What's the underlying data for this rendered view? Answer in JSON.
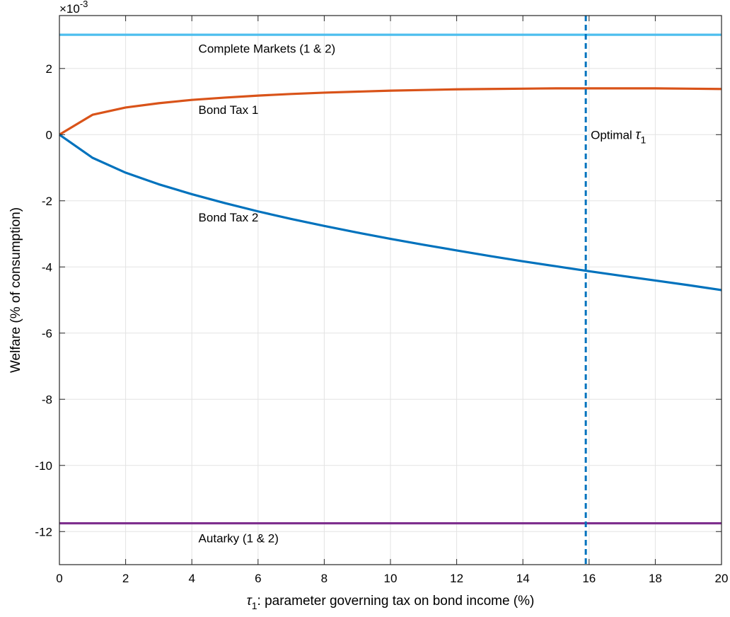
{
  "chart_data": {
    "type": "line",
    "xlabel_symbol": "τ",
    "xlabel_subscript": "1",
    "xlabel_rest": ": parameter governing tax on bond income (%)",
    "ylabel": "Welfare (% of consumption)",
    "y_exponent_prefix": "×10",
    "y_exponent_power": "-3",
    "xlim": [
      0,
      20
    ],
    "ylim": [
      -13,
      3.6
    ],
    "xticks": [
      0,
      2,
      4,
      6,
      8,
      10,
      12,
      14,
      16,
      18,
      20
    ],
    "yticks": [
      -12,
      -10,
      -8,
      -6,
      -4,
      -2,
      0,
      2
    ],
    "grid": true,
    "legend": "none",
    "series": [
      {
        "key": "complete",
        "color": "#4DBEEE",
        "style": "solid",
        "x": [
          0,
          20
        ],
        "y": [
          3.02,
          3.02
        ]
      },
      {
        "key": "bondtax1",
        "color": "#D95319",
        "style": "solid",
        "x": [
          0,
          1,
          2,
          3,
          4,
          5,
          6,
          7,
          8,
          9,
          10,
          11,
          12,
          13,
          14,
          15,
          16,
          17,
          18,
          19,
          20
        ],
        "y": [
          0,
          0.6,
          0.82,
          0.95,
          1.05,
          1.12,
          1.18,
          1.23,
          1.27,
          1.3,
          1.33,
          1.35,
          1.37,
          1.38,
          1.39,
          1.4,
          1.4,
          1.4,
          1.4,
          1.39,
          1.38
        ]
      },
      {
        "key": "bondtax2",
        "color": "#0072BD",
        "style": "solid",
        "x": [
          0,
          1,
          2,
          3,
          4,
          5,
          6,
          7,
          8,
          9,
          10,
          11,
          12,
          13,
          14,
          15,
          16,
          17,
          18,
          19,
          20
        ],
        "y": [
          0,
          -0.7,
          -1.15,
          -1.5,
          -1.8,
          -2.07,
          -2.32,
          -2.55,
          -2.76,
          -2.96,
          -3.15,
          -3.33,
          -3.5,
          -3.67,
          -3.83,
          -3.98,
          -4.13,
          -4.27,
          -4.41,
          -4.55,
          -4.7
        ]
      },
      {
        "key": "autarky",
        "color": "#7E2F8E",
        "style": "solid",
        "x": [
          0,
          20
        ],
        "y": [
          -11.75,
          -11.75
        ]
      }
    ],
    "vline": {
      "x": 15.9,
      "color": "#0072BD",
      "style": "dashed"
    },
    "annotations": [
      {
        "key": "complete",
        "text": "Complete Markets (1 & 2)",
        "x": 4.2,
        "y": 2.6
      },
      {
        "key": "bondtax1",
        "text": "Bond Tax 1",
        "x": 4.2,
        "y": 0.75
      },
      {
        "key": "bondtax2",
        "text": "Bond Tax 2",
        "x": 4.2,
        "y": -2.5
      },
      {
        "key": "autarky",
        "text": "Autarky (1 & 2)",
        "x": 4.2,
        "y": -12.2
      },
      {
        "key": "optimal",
        "text": "Optimal ",
        "symbol": "τ",
        "subscript": "1",
        "x": 16.05,
        "y": 0
      }
    ]
  }
}
